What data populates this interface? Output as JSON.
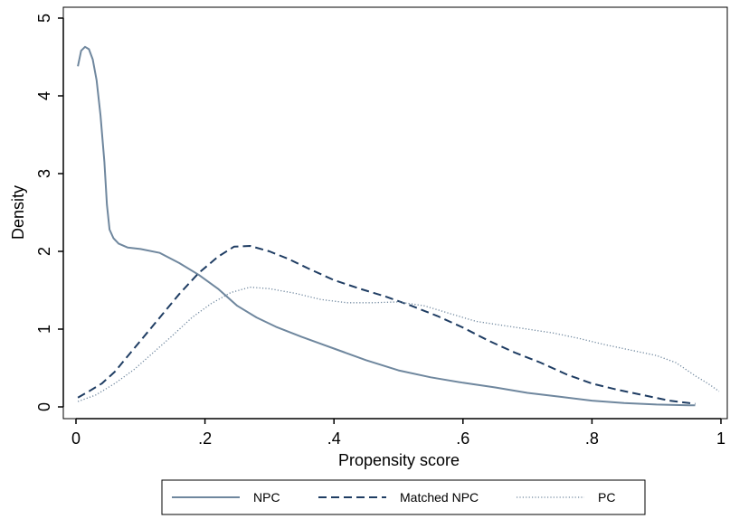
{
  "chart_data": {
    "type": "line",
    "title": "",
    "xlabel": "Propensity score",
    "ylabel": "Density",
    "xlim": [
      0,
      1
    ],
    "ylim": [
      0,
      5
    ],
    "x_ticks": [
      0,
      0.2,
      0.4,
      0.6,
      0.8,
      1
    ],
    "x_tick_labels": [
      "0",
      ".2",
      ".4",
      ".6",
      ".8",
      "1"
    ],
    "y_ticks": [
      0,
      1,
      2,
      3,
      4,
      5
    ],
    "y_tick_labels": [
      "0",
      "1",
      "2",
      "3",
      "4",
      "5"
    ],
    "grid": false,
    "legend_position": "bottom",
    "series": [
      {
        "name": "NPC",
        "style": "solid",
        "color": "#6f879e",
        "points": [
          [
            0.003,
            4.38
          ],
          [
            0.008,
            4.58
          ],
          [
            0.014,
            4.63
          ],
          [
            0.02,
            4.6
          ],
          [
            0.026,
            4.47
          ],
          [
            0.032,
            4.2
          ],
          [
            0.038,
            3.75
          ],
          [
            0.044,
            3.15
          ],
          [
            0.048,
            2.6
          ],
          [
            0.052,
            2.28
          ],
          [
            0.058,
            2.17
          ],
          [
            0.066,
            2.1
          ],
          [
            0.08,
            2.05
          ],
          [
            0.1,
            2.03
          ],
          [
            0.13,
            1.98
          ],
          [
            0.16,
            1.85
          ],
          [
            0.19,
            1.7
          ],
          [
            0.22,
            1.52
          ],
          [
            0.25,
            1.3
          ],
          [
            0.28,
            1.15
          ],
          [
            0.31,
            1.03
          ],
          [
            0.35,
            0.9
          ],
          [
            0.4,
            0.75
          ],
          [
            0.45,
            0.6
          ],
          [
            0.5,
            0.47
          ],
          [
            0.55,
            0.38
          ],
          [
            0.6,
            0.31
          ],
          [
            0.65,
            0.25
          ],
          [
            0.7,
            0.18
          ],
          [
            0.75,
            0.13
          ],
          [
            0.8,
            0.08
          ],
          [
            0.85,
            0.05
          ],
          [
            0.9,
            0.03
          ],
          [
            0.95,
            0.02
          ],
          [
            0.96,
            0.02
          ]
        ]
      },
      {
        "name": "Matched NPC",
        "style": "dashed",
        "color": "#1f3d63",
        "points": [
          [
            0.003,
            0.12
          ],
          [
            0.02,
            0.2
          ],
          [
            0.04,
            0.3
          ],
          [
            0.06,
            0.45
          ],
          [
            0.08,
            0.65
          ],
          [
            0.1,
            0.85
          ],
          [
            0.13,
            1.15
          ],
          [
            0.16,
            1.45
          ],
          [
            0.19,
            1.72
          ],
          [
            0.22,
            1.93
          ],
          [
            0.245,
            2.06
          ],
          [
            0.27,
            2.07
          ],
          [
            0.3,
            2.0
          ],
          [
            0.33,
            1.9
          ],
          [
            0.36,
            1.78
          ],
          [
            0.4,
            1.63
          ],
          [
            0.44,
            1.52
          ],
          [
            0.48,
            1.42
          ],
          [
            0.52,
            1.3
          ],
          [
            0.56,
            1.17
          ],
          [
            0.6,
            1.02
          ],
          [
            0.64,
            0.85
          ],
          [
            0.68,
            0.7
          ],
          [
            0.72,
            0.57
          ],
          [
            0.76,
            0.42
          ],
          [
            0.8,
            0.3
          ],
          [
            0.84,
            0.22
          ],
          [
            0.88,
            0.15
          ],
          [
            0.92,
            0.08
          ],
          [
            0.96,
            0.04
          ]
        ]
      },
      {
        "name": "PC",
        "style": "dotted",
        "color": "#6f879e",
        "points": [
          [
            0.003,
            0.07
          ],
          [
            0.03,
            0.15
          ],
          [
            0.06,
            0.3
          ],
          [
            0.09,
            0.48
          ],
          [
            0.12,
            0.7
          ],
          [
            0.15,
            0.92
          ],
          [
            0.18,
            1.15
          ],
          [
            0.21,
            1.33
          ],
          [
            0.24,
            1.47
          ],
          [
            0.27,
            1.54
          ],
          [
            0.3,
            1.52
          ],
          [
            0.34,
            1.46
          ],
          [
            0.38,
            1.38
          ],
          [
            0.42,
            1.34
          ],
          [
            0.46,
            1.34
          ],
          [
            0.5,
            1.35
          ],
          [
            0.54,
            1.3
          ],
          [
            0.58,
            1.2
          ],
          [
            0.62,
            1.1
          ],
          [
            0.66,
            1.05
          ],
          [
            0.7,
            1.0
          ],
          [
            0.74,
            0.95
          ],
          [
            0.78,
            0.88
          ],
          [
            0.82,
            0.8
          ],
          [
            0.86,
            0.73
          ],
          [
            0.9,
            0.66
          ],
          [
            0.93,
            0.57
          ],
          [
            0.96,
            0.4
          ],
          [
            0.98,
            0.3
          ],
          [
            0.997,
            0.2
          ]
        ]
      }
    ]
  }
}
